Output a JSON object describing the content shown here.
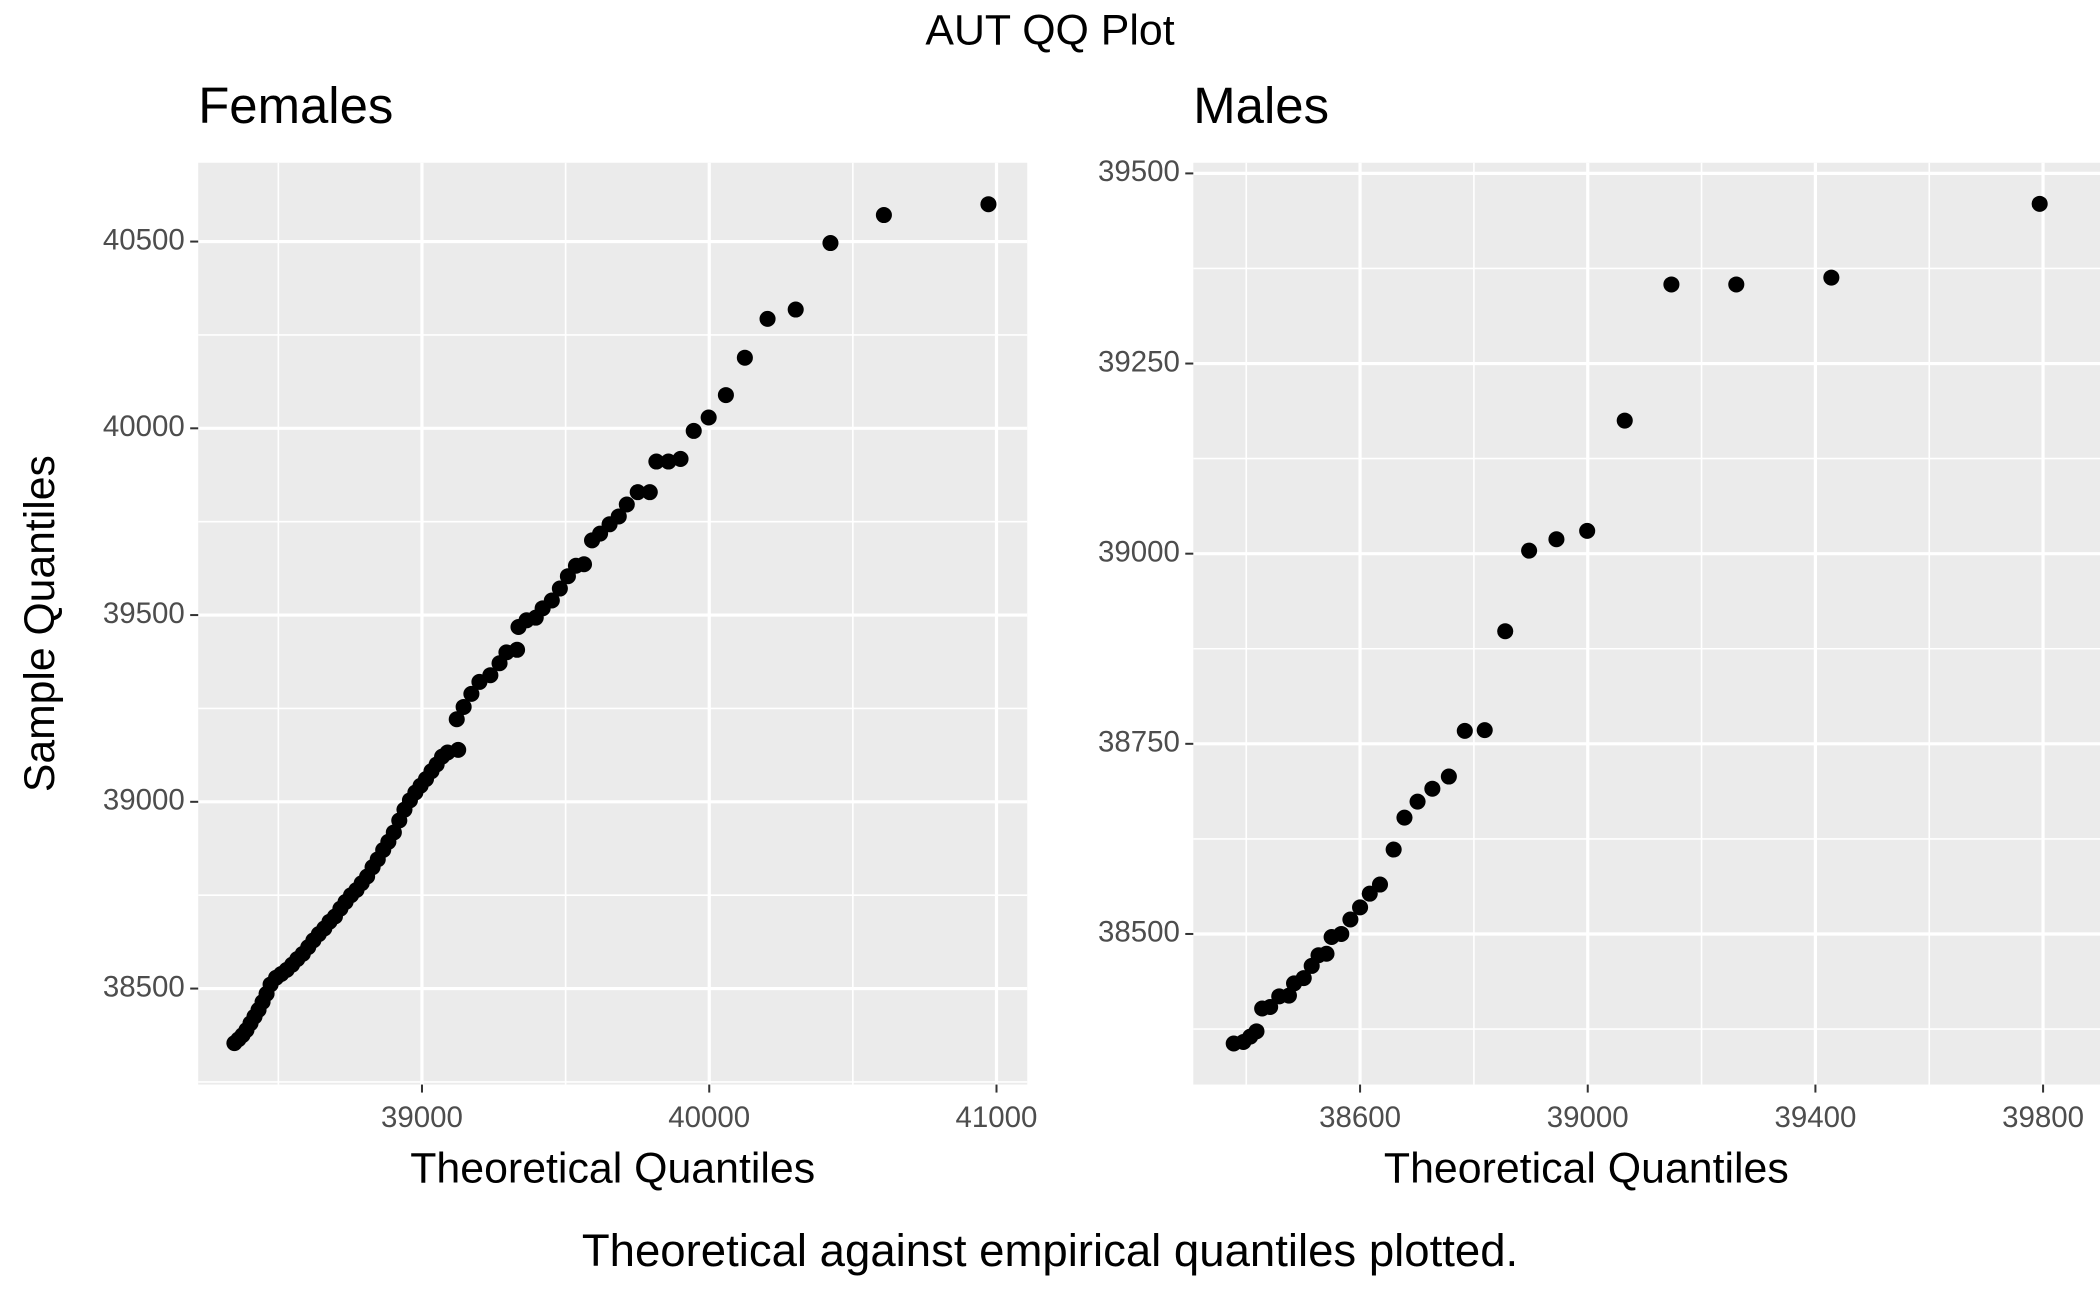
{
  "title": "AUT QQ Plot",
  "caption": "Theoretical against empirical quantiles plotted.",
  "chart_data": [
    {
      "type": "scatter",
      "title": "Females",
      "x_label": "Theoretical Quantiles",
      "y_label": "Sample Quantiles",
      "color": "#000000",
      "grid": true,
      "xlim": [
        38221,
        41107
      ],
      "ylim": [
        38243,
        40711
      ],
      "xticks": [
        39000,
        40000,
        41000
      ],
      "yticks": [
        38500,
        39000,
        39500,
        40000,
        40500
      ],
      "x": [
        38347,
        38361,
        38375,
        38389,
        38403,
        38417,
        38431,
        38445,
        38459,
        38473,
        38492,
        38510,
        38529,
        38548,
        38566,
        38585,
        38604,
        38622,
        38641,
        38660,
        38678,
        38697,
        38716,
        38734,
        38753,
        38772,
        38790,
        38809,
        38828,
        38846,
        38865,
        38883,
        38902,
        38921,
        38939,
        38958,
        38977,
        38995,
        39014,
        39033,
        39051,
        39070,
        39089,
        39126,
        39121,
        39145,
        39172,
        39200,
        39238,
        39270,
        39294,
        39331,
        39336,
        39364,
        39396,
        39420,
        39452,
        39480,
        39508,
        39536,
        39564,
        39592,
        39620,
        39653,
        39685,
        39713,
        39751,
        39793,
        39816,
        39858,
        39900,
        39946,
        39998,
        40058,
        40124,
        40203,
        40301,
        40422,
        40608,
        40972
      ],
      "values": [
        38354,
        38364,
        38375,
        38389,
        38407,
        38425,
        38443,
        38464,
        38486,
        38511,
        38529,
        38539,
        38550,
        38564,
        38579,
        38593,
        38611,
        38629,
        38646,
        38661,
        38679,
        38693,
        38714,
        38732,
        38750,
        38764,
        38782,
        38800,
        38825,
        38846,
        38871,
        38893,
        38918,
        38950,
        38979,
        39004,
        39025,
        39043,
        39061,
        39082,
        39100,
        39121,
        39132,
        39139,
        39221,
        39254,
        39289,
        39321,
        39339,
        39371,
        39400,
        39407,
        39468,
        39486,
        39493,
        39518,
        39539,
        39571,
        39604,
        39632,
        39636,
        39700,
        39718,
        39743,
        39764,
        39796,
        39829,
        39829,
        39911,
        39911,
        39918,
        39993,
        40029,
        40089,
        40189,
        40293,
        40318,
        40496,
        40571,
        40600
      ]
    },
    {
      "type": "scatter",
      "title": "Males",
      "x_label": "Theoretical Quantiles",
      "color": "#000000",
      "grid": true,
      "xlim": [
        38307,
        39900
      ],
      "ylim": [
        38302,
        39514
      ],
      "xticks": [
        38600,
        39000,
        39400,
        39800
      ],
      "yticks": [
        38500,
        38750,
        39000,
        39250,
        39500
      ],
      "x": [
        38378,
        38395,
        38407,
        38418,
        38428,
        38442,
        38458,
        38475,
        38484,
        38501,
        38515,
        38527,
        38541,
        38550,
        38567,
        38583,
        38600,
        38617,
        38635,
        38659,
        38678,
        38701,
        38727,
        38756,
        38784,
        38819,
        38855,
        38897,
        38945,
        38999,
        39065,
        39147,
        39261,
        39428,
        39794
      ],
      "values": [
        38356,
        38358,
        38365,
        38372,
        38402,
        38404,
        38418,
        38419,
        38435,
        38442,
        38458,
        38472,
        38474,
        38496,
        38500,
        38519,
        38535,
        38553,
        38565,
        38611,
        38653,
        38674,
        38691,
        38707,
        38767,
        38768,
        38898,
        39004,
        39019,
        39030,
        39175,
        39354,
        39354,
        39363,
        39460
      ]
    }
  ]
}
